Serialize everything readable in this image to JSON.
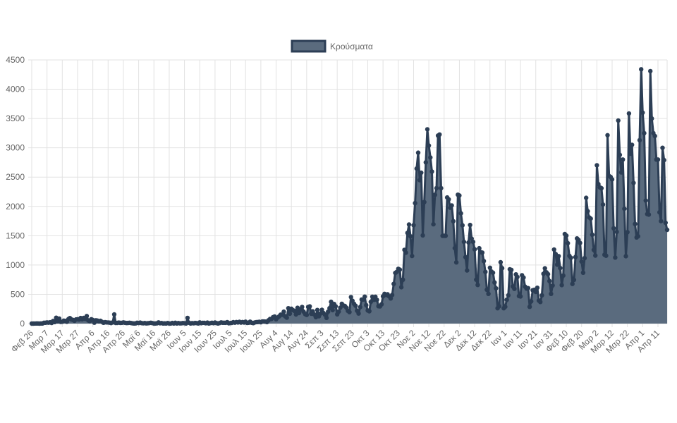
{
  "chart_data": {
    "type": "area",
    "legend": {
      "position": "top",
      "entries": [
        "Κρούσματα"
      ]
    },
    "series": [
      {
        "name": "Κρούσματα",
        "fill_color": "#5a6b7e",
        "line_color": "#2c3e55"
      }
    ],
    "ylim": [
      0,
      4500
    ],
    "y_ticks": [
      "0",
      "500",
      "1000",
      "1500",
      "2000",
      "2500",
      "3000",
      "3500",
      "4000",
      "4500"
    ],
    "x_ticks": [
      "Φεβ 26",
      "Μαρ 7",
      "Μαρ 17",
      "Μαρ 27",
      "Απρ 6",
      "Απρ 16",
      "Απρ 26",
      "Μαϊ 6",
      "Μαϊ 16",
      "Μαϊ 26",
      "Ιουν 5",
      "Ιουν 15",
      "Ιουν 25",
      "Ιουλ 5",
      "Ιουλ 15",
      "Ιουλ 25",
      "Αυγ 4",
      "Αυγ 14",
      "Αυγ 24",
      "Σεπ 3",
      "Σεπ 13",
      "Σεπ 23",
      "Οκτ 3",
      "Οκτ 13",
      "Οκτ 23",
      "Νοε 2",
      "Νοε 12",
      "Νοε 22",
      "Δεκ 2",
      "Δεκ 12",
      "Δεκ 22",
      "Ιαν 1",
      "Ιαν 11",
      "Ιαν 21",
      "Ιαν 31",
      "Φεβ 10",
      "Φεβ 20",
      "Μαρ 2",
      "Μαρ 12",
      "Μαρ 22",
      "Απρ 1",
      "Απρ 11"
    ],
    "grid": true,
    "values": [
      1,
      0,
      1,
      3,
      2,
      0,
      2,
      2,
      14,
      14,
      21,
      16,
      23,
      11,
      44,
      27,
      100,
      38,
      85,
      29,
      33,
      50,
      46,
      31,
      77,
      94,
      71,
      62,
      48,
      71,
      74,
      70,
      95,
      73,
      98,
      79,
      129,
      54,
      42,
      74,
      62,
      16,
      56,
      52,
      39,
      47,
      30,
      14,
      24,
      20,
      19,
      16,
      10,
      20,
      156,
      11,
      12,
      17,
      12,
      13,
      21,
      15,
      10,
      11,
      14,
      10,
      5,
      3,
      4,
      15,
      10,
      17,
      8,
      5,
      10,
      4,
      6,
      10,
      15,
      8,
      2,
      3,
      5,
      21,
      6,
      10,
      3,
      4,
      2,
      10,
      3,
      1,
      11,
      2,
      15,
      3,
      10,
      4,
      5,
      10,
      7,
      1,
      97,
      15,
      3,
      9,
      5,
      11,
      9,
      3,
      21,
      7,
      13,
      12,
      6,
      17,
      3,
      8,
      14,
      7,
      18,
      8,
      2,
      10,
      21,
      15,
      14,
      13,
      25,
      6,
      10,
      12,
      24,
      16,
      27,
      19,
      30,
      17,
      26,
      18,
      32,
      12,
      15,
      33,
      15,
      8,
      19,
      25,
      26,
      30,
      23,
      36,
      36,
      34,
      26,
      57,
      78,
      79,
      110,
      121,
      75,
      103,
      124,
      153,
      151,
      203,
      124,
      101,
      262,
      168,
      254,
      230,
      217,
      156,
      269,
      181,
      242,
      284,
      203,
      163,
      148,
      284,
      293,
      168,
      209,
      155,
      110,
      232,
      125,
      171,
      235,
      181,
      153,
      99,
      203,
      264,
      372,
      230,
      334,
      295,
      159,
      205,
      272,
      338,
      309,
      301,
      271,
      218,
      196,
      453,
      390,
      338,
      306,
      220,
      172,
      282,
      410,
      411,
      460,
      314,
      224,
      211,
      370,
      459,
      405,
      459,
      406,
      297,
      293,
      329,
      466,
      508,
      487,
      501,
      465,
      429,
      488,
      677,
      865,
      882,
      935,
      920,
      621,
      748,
      1259,
      1211,
      1547,
      1690,
      1490,
      1154,
      1678,
      2056,
      2646,
      2917,
      2448,
      2575,
      1505,
      2073,
      2752,
      3316,
      3038,
      2835,
      2594,
      1695,
      2198,
      2311,
      3209,
      3227,
      2311,
      1498,
      1498,
      1498,
      2152,
      2120,
      1978,
      2017,
      1747,
      1288,
      1044,
      2199,
      2186,
      1882,
      1677,
      1395,
      1135,
      907,
      1384,
      1683,
      1450,
      1395,
      1268,
      749,
      659,
      1286,
      1219,
      1212,
      1067,
      882,
      577,
      508,
      953,
      888,
      868,
      702,
      602,
      262,
      296,
      1047,
      946,
      262,
      287,
      407,
      483,
      927,
      917,
      634,
      593,
      840,
      795,
      471,
      463,
      826,
      786,
      630,
      598,
      605,
      286,
      379,
      569,
      576,
      541,
      611,
      393,
      369,
      483,
      849,
      943,
      875,
      843,
      726,
      508,
      650,
      1263,
      1187,
      1006,
      1152,
      948,
      657,
      819,
      1528,
      1502,
      1372,
      1156,
      1124,
      677,
      746,
      1136,
      1454,
      1428,
      1376,
      1059,
      869,
      1118,
      2147,
      1918,
      1812,
      1792,
      1516,
      1257,
      1161,
      2702,
      2381,
      2325,
      2310,
      2032,
      1176,
      1159,
      3215,
      2520,
      2503,
      2460,
      1626,
      1127,
      1565,
      3465,
      2880,
      2580,
      2800,
      1960,
      1150,
      1560,
      3586,
      2900,
      3050,
      2400,
      1700,
      1470,
      1490,
      3130,
      4340,
      3600,
      3250,
      2100,
      1870,
      1860,
      4309,
      3500,
      3250,
      3200,
      2800,
      2800,
      1900,
      1750,
      3000,
      2790,
      1720,
      1600
    ]
  }
}
